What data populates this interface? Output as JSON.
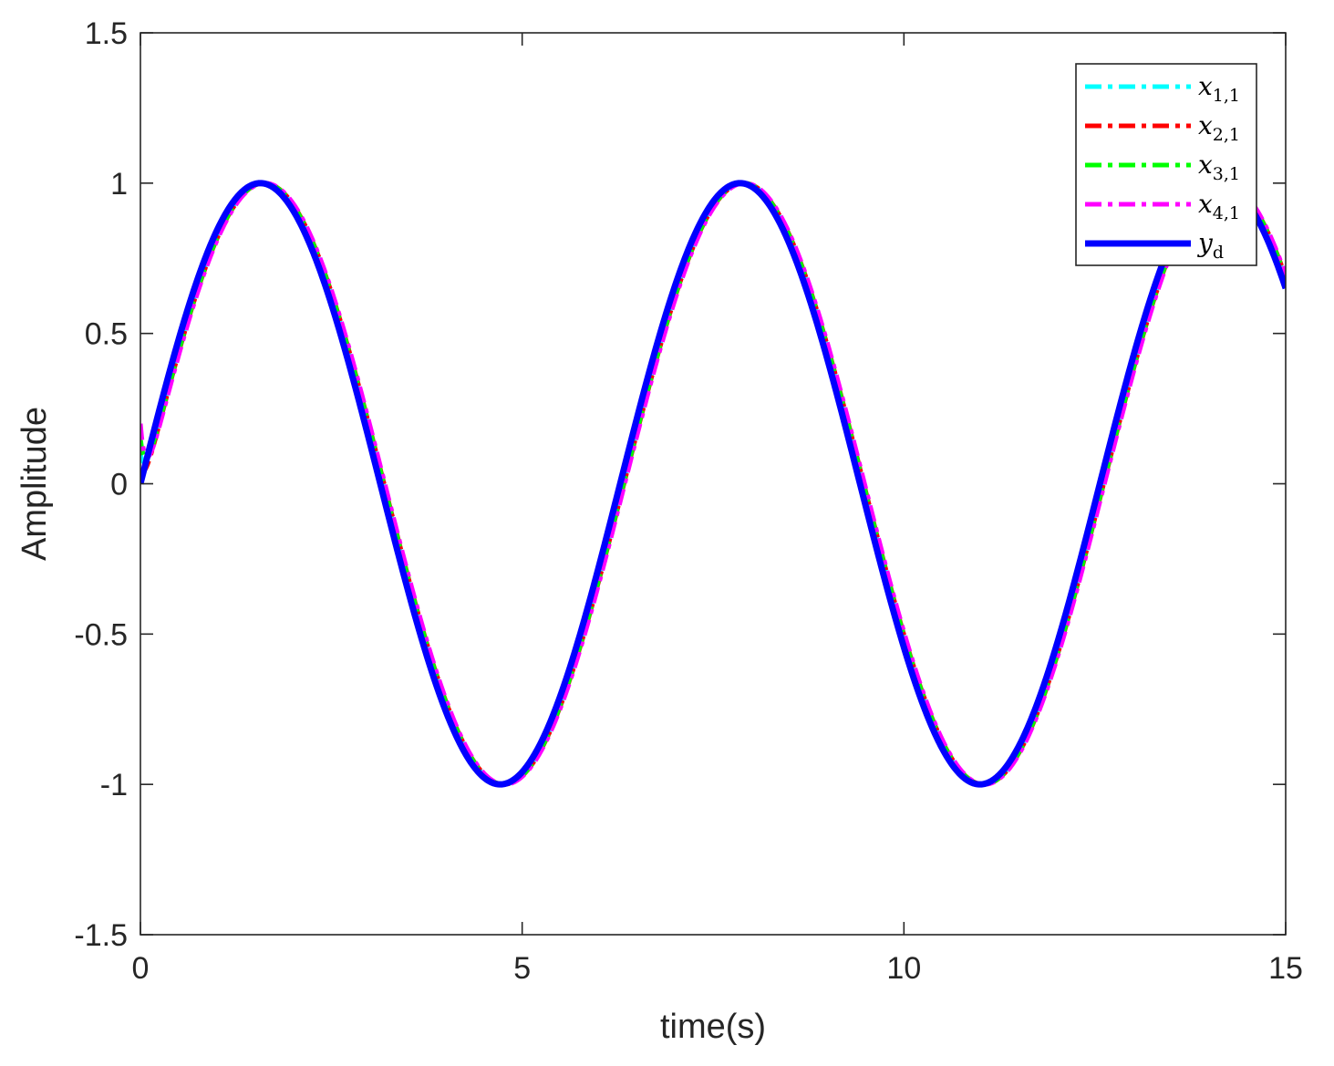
{
  "chart_data": {
    "type": "line",
    "title": "",
    "xlabel": "time(s)",
    "ylabel": "Amplitude",
    "xlim": [
      0,
      15
    ],
    "ylim": [
      -1.5,
      1.5
    ],
    "xticks": [
      0,
      5,
      10,
      15
    ],
    "xtick_labels": [
      "0",
      "5",
      "10",
      "15"
    ],
    "yticks": [
      -1.5,
      -1,
      -0.5,
      0,
      0.5,
      1,
      1.5
    ],
    "ytick_labels": [
      "-1.5",
      "-1",
      "-0.5",
      "0",
      "0.5",
      "1",
      "1.5"
    ],
    "grid": false,
    "legend_position": "top-right",
    "series": [
      {
        "name": "x_{1,1}",
        "legend_label": {
          "base": "x",
          "sub": "1,1"
        },
        "color": "#00ffff",
        "style": "dashdot",
        "initial_value": 0.1,
        "phase_lag": 0.04,
        "x": [
          0,
          0.05,
          0.1,
          0.2,
          0.5,
          1,
          1.5708,
          2,
          3,
          4,
          4.7124,
          5,
          6,
          7,
          7.854,
          8,
          9,
          10,
          10.9956,
          12,
          13,
          14,
          14.1372,
          15
        ],
        "values": [
          0.1,
          0.08,
          0.1,
          0.2,
          0.48,
          0.84,
          1.0,
          0.91,
          0.14,
          -0.76,
          -1.0,
          -0.96,
          -0.28,
          0.66,
          1.0,
          0.99,
          0.41,
          -0.54,
          -1.0,
          -0.54,
          0.42,
          0.99,
          1.0,
          0.65
        ]
      },
      {
        "name": "x_{2,1}",
        "legend_label": {
          "base": "x",
          "sub": "2,1"
        },
        "color": "#ff0000",
        "style": "dashdot",
        "initial_value": 0.05,
        "phase_lag": 0.05,
        "x": [
          0,
          0.05,
          0.1,
          0.2,
          0.5,
          1,
          1.5708,
          2,
          3,
          4,
          4.7124,
          5,
          6,
          7,
          7.854,
          8,
          9,
          10,
          10.9956,
          12,
          13,
          14,
          14.1372,
          15
        ],
        "values": [
          0.05,
          0.05,
          0.09,
          0.2,
          0.48,
          0.84,
          1.0,
          0.91,
          0.14,
          -0.76,
          -1.0,
          -0.96,
          -0.28,
          0.66,
          1.0,
          0.99,
          0.41,
          -0.54,
          -1.0,
          -0.54,
          0.42,
          0.99,
          1.0,
          0.65
        ]
      },
      {
        "name": "x_{3,1}",
        "legend_label": {
          "base": "x",
          "sub": "3,1"
        },
        "color": "#00ff00",
        "style": "dashdot",
        "initial_value": 0.15,
        "phase_lag": 0.045,
        "x": [
          0,
          0.05,
          0.1,
          0.2,
          0.5,
          1,
          1.5708,
          2,
          3,
          4,
          4.7124,
          5,
          6,
          7,
          7.854,
          8,
          9,
          10,
          10.9956,
          12,
          13,
          14,
          14.1372,
          15
        ],
        "values": [
          0.15,
          0.1,
          0.11,
          0.2,
          0.48,
          0.84,
          1.0,
          0.91,
          0.14,
          -0.76,
          -1.0,
          -0.96,
          -0.28,
          0.66,
          1.0,
          0.99,
          0.41,
          -0.54,
          -1.0,
          -0.54,
          0.42,
          0.99,
          1.0,
          0.65
        ]
      },
      {
        "name": "x_{4,1}",
        "legend_label": {
          "base": "x",
          "sub": "4,1"
        },
        "color": "#ff00ff",
        "style": "dashdot",
        "initial_value": 0.2,
        "phase_lag": 0.06,
        "x": [
          0,
          0.05,
          0.1,
          0.2,
          0.5,
          1,
          1.5708,
          2,
          3,
          4,
          4.7124,
          5,
          6,
          7,
          7.854,
          8,
          9,
          10,
          10.9956,
          12,
          13,
          14,
          14.1372,
          15
        ],
        "values": [
          0.2,
          0.12,
          0.12,
          0.2,
          0.48,
          0.84,
          1.0,
          0.91,
          0.14,
          -0.76,
          -1.0,
          -0.96,
          -0.28,
          0.66,
          1.0,
          0.99,
          0.41,
          -0.54,
          -1.0,
          -0.54,
          0.42,
          0.99,
          1.0,
          0.65
        ]
      },
      {
        "name": "y_d",
        "legend_label": {
          "base": "y",
          "sub": "d"
        },
        "color": "#0000ff",
        "style": "solid",
        "initial_value": 0,
        "phase_lag": 0,
        "x": [
          0,
          0.5,
          1,
          1.5708,
          2,
          3,
          4,
          4.7124,
          5,
          6,
          7,
          7.854,
          8,
          9,
          10,
          10.9956,
          12,
          13,
          14,
          14.1372,
          15
        ],
        "values": [
          0,
          0.48,
          0.84,
          1.0,
          0.91,
          0.14,
          -0.76,
          -1.0,
          -0.96,
          -0.28,
          0.66,
          1.0,
          0.99,
          0.41,
          -0.54,
          -1.0,
          -0.54,
          0.42,
          0.99,
          1.0,
          0.65
        ]
      }
    ]
  }
}
